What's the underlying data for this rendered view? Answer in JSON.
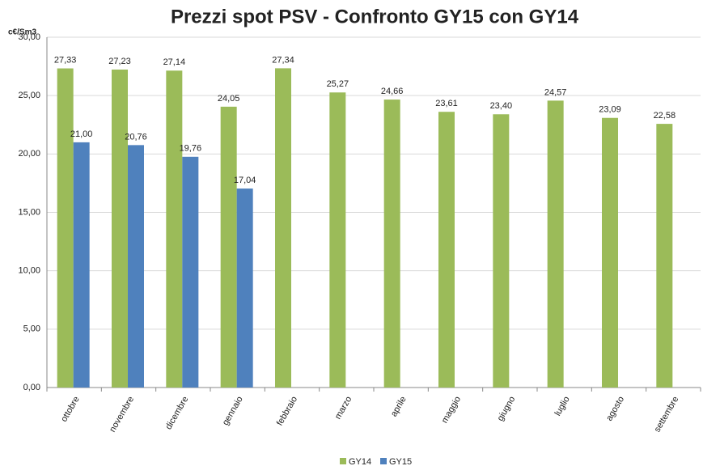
{
  "chart_data": {
    "type": "bar",
    "title": "Prezzi spot PSV - Confronto  GY15 con GY14",
    "y_label": "c€/Sm3",
    "categories": [
      "ottobre",
      "novembre",
      "dicembre",
      "gennaio",
      "febbraio",
      "marzo",
      "aprile",
      "maggio",
      "giugno",
      "luglio",
      "agosto",
      "settembre"
    ],
    "series": [
      {
        "name": "GY14",
        "color": "#9bbb59",
        "values": [
          27.33,
          27.23,
          27.14,
          24.05,
          27.34,
          25.27,
          24.66,
          23.61,
          23.4,
          24.57,
          23.09,
          22.58
        ],
        "value_labels": [
          "27,33",
          "27,23",
          "27,14",
          "24,05",
          "27,34",
          "25,27",
          "24,66",
          "23,61",
          "23,40",
          "24,57",
          "23,09",
          "22,58"
        ]
      },
      {
        "name": "GY15",
        "color": "#4f81bd",
        "values": [
          21.0,
          20.76,
          19.76,
          17.04,
          null,
          null,
          null,
          null,
          null,
          null,
          null,
          null
        ],
        "value_labels": [
          "21,00",
          "20,76",
          "19,76",
          "17,04",
          null,
          null,
          null,
          null,
          null,
          null,
          null,
          null
        ]
      }
    ],
    "ylim": [
      0,
      30
    ],
    "yticks": [
      {
        "value": 0,
        "label": "0,00"
      },
      {
        "value": 5,
        "label": "5,00"
      },
      {
        "value": 10,
        "label": "10,00"
      },
      {
        "value": 15,
        "label": "15,00"
      },
      {
        "value": 20,
        "label": "20,00"
      },
      {
        "value": 25,
        "label": "25,00"
      },
      {
        "value": 30,
        "label": "30,00"
      }
    ],
    "grid": true,
    "legend": "bottom"
  }
}
